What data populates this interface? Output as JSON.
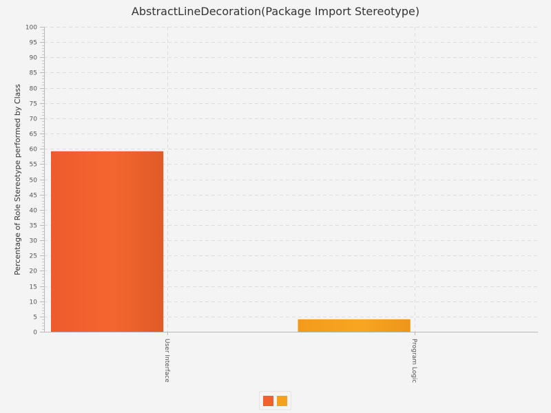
{
  "chart_data": {
    "type": "bar",
    "title": "AbstractLineDecoration(Package Import Stereotype)",
    "ylabel": "Percentage of Role Stereotype performed by Class",
    "xlabel": "",
    "ylim": [
      0,
      100
    ],
    "ytick_step": 5,
    "categories": [
      "User Interface",
      "Program Logic"
    ],
    "values": [
      59.2,
      4.1
    ],
    "colors": [
      "#f06030",
      "#f6a01e"
    ],
    "grid": true,
    "legend_placement": "bottom-center"
  }
}
